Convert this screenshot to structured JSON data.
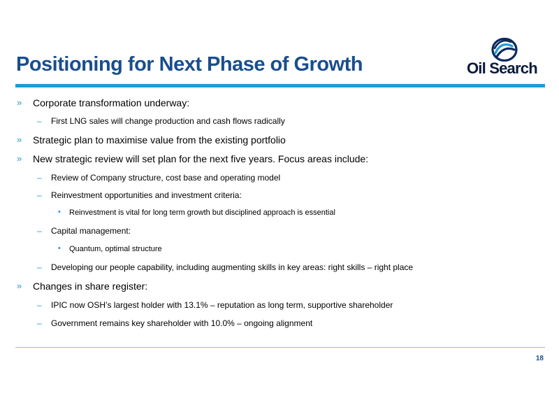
{
  "slide": {
    "title": "Positioning for Next Phase of Growth",
    "logo_text": "Oil Search",
    "page_number": "18",
    "colors": {
      "title": "#1a4e8c",
      "accent": "#1f9ad6",
      "logo_text": "#0a1a3a"
    }
  },
  "markers": {
    "level1": "»",
    "level2": "–",
    "level3": "•"
  },
  "bullets": [
    {
      "level": 1,
      "text": "Corporate transformation underway:"
    },
    {
      "level": 2,
      "text": "First LNG sales will change production and cash flows radically"
    },
    {
      "level": 1,
      "text": "Strategic plan to maximise value from the existing portfolio"
    },
    {
      "level": 1,
      "text": "New strategic review will set plan for the next five years.  Focus areas include:"
    },
    {
      "level": 2,
      "text": "Review of Company structure, cost base and operating model"
    },
    {
      "level": 2,
      "text": "Reinvestment opportunities and investment criteria:"
    },
    {
      "level": 3,
      "text": "Reinvestment is vital for long term growth but disciplined approach is essential"
    },
    {
      "level": 2,
      "text": "Capital management:"
    },
    {
      "level": 3,
      "text": "Quantum, optimal structure"
    },
    {
      "level": 2,
      "text": "Developing our people capability, including augmenting skills in key areas: right skills – right place"
    },
    {
      "level": 1,
      "text": "Changes in share register:"
    },
    {
      "level": 2,
      "text": "IPIC now OSH’s largest holder with 13.1% – reputation as long term, supportive shareholder"
    },
    {
      "level": 2,
      "text": "Government remains key shareholder with 10.0% – ongoing alignment"
    }
  ]
}
